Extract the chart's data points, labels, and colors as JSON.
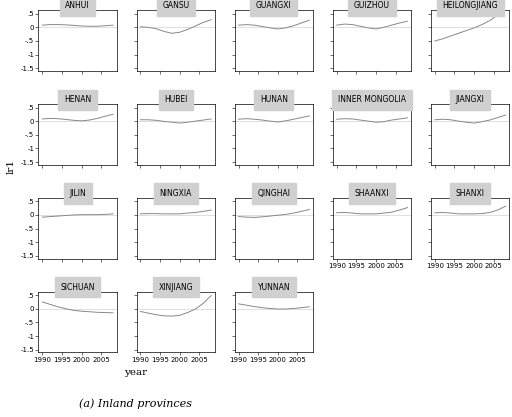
{
  "provinces": [
    "ANHUI",
    "GANSU",
    "GUANGXI",
    "GUIZHOU",
    "HEILONGJIANG",
    "HENAN",
    "HUBEI",
    "HUNAN",
    "INNER MONGOLIA",
    "JIANGXI",
    "JILIN",
    "NINGXIA",
    "QINGHAI",
    "SHAANXI",
    "SHANXI",
    "SICHUAN",
    "XINJIANG",
    "YUNNAN"
  ],
  "years": [
    1990,
    1992,
    1994,
    1996,
    1998,
    2000,
    2002,
    2004,
    2006,
    2008
  ],
  "data": {
    "ANHUI": [
      0.08,
      0.1,
      0.1,
      0.09,
      0.07,
      0.05,
      0.04,
      0.04,
      0.06,
      0.08
    ],
    "GANSU": [
      0.02,
      0.0,
      -0.05,
      -0.15,
      -0.22,
      -0.18,
      -0.08,
      0.05,
      0.18,
      0.28
    ],
    "GUANGXI": [
      0.08,
      0.1,
      0.08,
      0.03,
      -0.02,
      -0.06,
      -0.02,
      0.06,
      0.16,
      0.26
    ],
    "GUIZHOU": [
      0.08,
      0.12,
      0.1,
      0.04,
      -0.02,
      -0.06,
      0.0,
      0.08,
      0.16,
      0.22
    ],
    "HEILONGJIANG": [
      -0.5,
      -0.42,
      -0.32,
      -0.22,
      -0.12,
      -0.02,
      0.1,
      0.25,
      0.45,
      0.65
    ],
    "HENAN": [
      0.08,
      0.1,
      0.09,
      0.06,
      0.03,
      0.01,
      0.04,
      0.1,
      0.18,
      0.25
    ],
    "HUBEI": [
      0.05,
      0.05,
      0.03,
      -0.01,
      -0.04,
      -0.07,
      -0.04,
      0.0,
      0.04,
      0.08
    ],
    "HUNAN": [
      0.07,
      0.09,
      0.07,
      0.04,
      0.0,
      -0.03,
      0.01,
      0.07,
      0.13,
      0.19
    ],
    "INNER MONGOLIA": [
      0.07,
      0.09,
      0.08,
      0.04,
      0.0,
      -0.04,
      -0.02,
      0.04,
      0.08,
      0.12
    ],
    "JIANGXI": [
      0.05,
      0.07,
      0.05,
      0.0,
      -0.04,
      -0.07,
      -0.02,
      0.04,
      0.13,
      0.22
    ],
    "JILIN": [
      -0.08,
      -0.06,
      -0.04,
      -0.02,
      0.0,
      0.01,
      0.01,
      0.01,
      0.02,
      0.04
    ],
    "NINGXIA": [
      0.04,
      0.05,
      0.05,
      0.04,
      0.04,
      0.04,
      0.07,
      0.09,
      0.13,
      0.18
    ],
    "QINGHAI": [
      -0.06,
      -0.08,
      -0.09,
      -0.07,
      -0.04,
      -0.01,
      0.02,
      0.07,
      0.13,
      0.2
    ],
    "SHAANXI": [
      0.08,
      0.09,
      0.07,
      0.04,
      0.04,
      0.04,
      0.07,
      0.1,
      0.18,
      0.27
    ],
    "SHANXI": [
      0.08,
      0.09,
      0.07,
      0.04,
      0.04,
      0.04,
      0.05,
      0.09,
      0.18,
      0.32
    ],
    "SICHUAN": [
      0.25,
      0.16,
      0.07,
      0.0,
      -0.06,
      -0.09,
      -0.11,
      -0.13,
      -0.14,
      -0.15
    ],
    "XINJIANG": [
      -0.1,
      -0.16,
      -0.22,
      -0.26,
      -0.27,
      -0.24,
      -0.14,
      -0.01,
      0.2,
      0.48
    ],
    "YUNNAN": [
      0.18,
      0.13,
      0.08,
      0.04,
      0.01,
      -0.01,
      -0.01,
      0.01,
      0.04,
      0.07
    ]
  },
  "ncols": 5,
  "ylabel": "lr1",
  "xlabel": "year",
  "caption": "(a) Inland provinces",
  "yticks": [
    -1.5,
    -1.0,
    -0.5,
    0.0,
    0.5
  ],
  "ytick_labels": [
    "-1.5",
    "-1",
    "-.5",
    "0",
    ".5"
  ],
  "xticks": [
    1990,
    1995,
    2000,
    2005
  ],
  "xtick_labels": [
    "1990",
    "1995",
    "2000",
    "2005"
  ],
  "ylim": [
    -1.6,
    0.62
  ],
  "xlim": [
    1989,
    2009
  ],
  "line_color": "#888888",
  "header_color": "#d0d0d0",
  "title_fontsize": 5.5,
  "tick_fontsize": 5.0,
  "label_fontsize": 7.5,
  "caption_fontsize": 8.0
}
